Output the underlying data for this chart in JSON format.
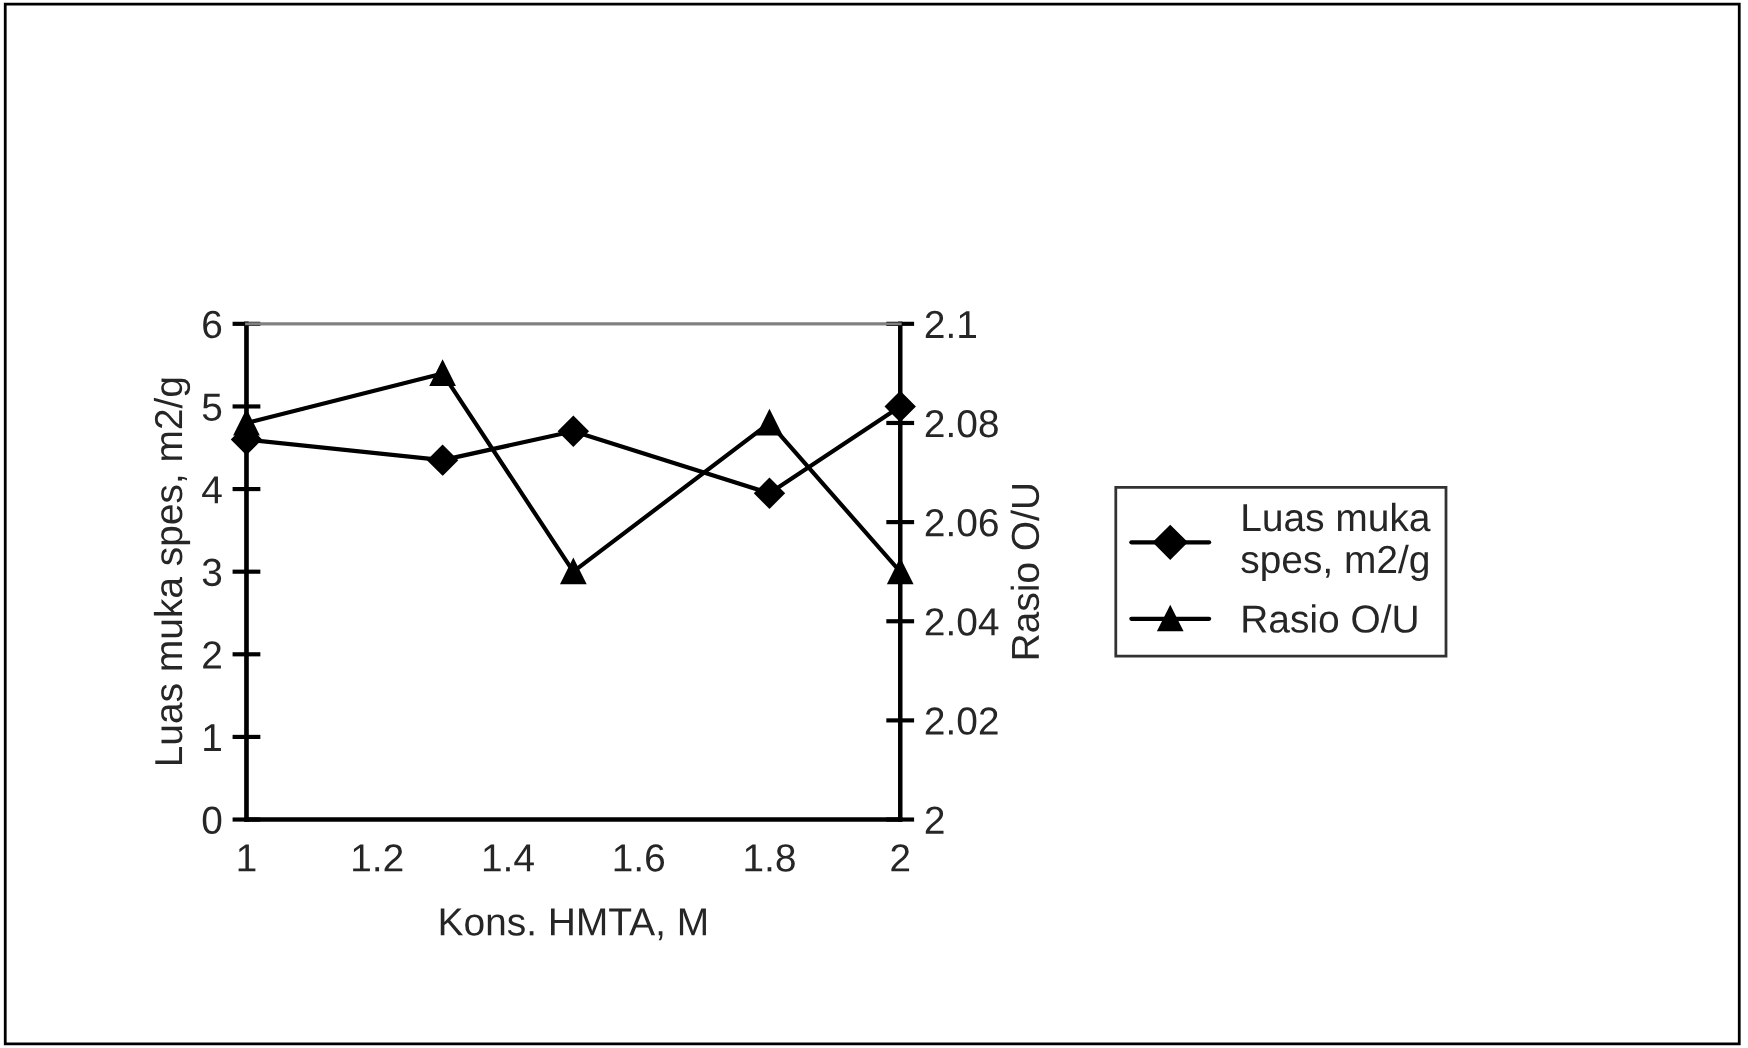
{
  "chart_data": {
    "type": "line",
    "xlabel": "Kons. HMTA, M",
    "ylabel": "Luas muka spes, m2/g",
    "y2label": "Rasio O/U",
    "x": [
      1,
      1.3,
      1.5,
      1.8,
      2
    ],
    "series": [
      {
        "name": "Luas muka spes, m2/g",
        "color": "#000000",
        "marker": "diamond",
        "values": [
          4.6,
          4.35,
          4.7,
          3.95,
          5.0
        ]
      },
      {
        "name": "Rasio O/U",
        "color": "#000000",
        "marker": "triangle",
        "axis": "y2",
        "values": [
          2.08,
          2.09,
          2.05,
          2.08,
          2.05
        ]
      }
    ],
    "xlim": [
      1,
      2
    ],
    "xticks": [
      1,
      1.2,
      1.4,
      1.6,
      1.8,
      2
    ],
    "ylim": [
      0,
      6
    ],
    "yticks": [
      0,
      1,
      2,
      3,
      4,
      5,
      6
    ],
    "y2lim": [
      2,
      2.1
    ],
    "y2ticks": [
      2,
      2.02,
      2.04,
      2.06,
      2.08,
      2.1
    ],
    "legend": "right",
    "line_style": "solid"
  }
}
